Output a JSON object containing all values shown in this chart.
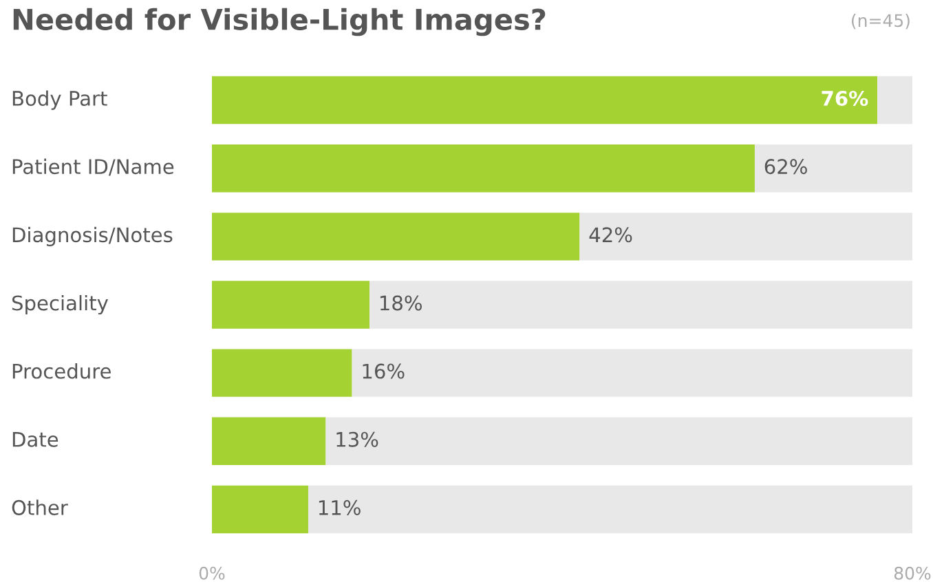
{
  "chart_data": {
    "type": "bar",
    "orientation": "horizontal",
    "stacked": true,
    "title": "Needed for Visible-Light Images?",
    "annotations": [
      "(n=45)"
    ],
    "categories": [
      "Body Part",
      "Patient ID/Name",
      "Diagnosis/Notes",
      "Speciality",
      "Procedure",
      "Date",
      "Other"
    ],
    "series": [
      {
        "color": "#a4d233",
        "values": [
          76,
          62,
          42,
          18,
          16,
          13,
          11
        ],
        "value_labels": [
          "76%",
          "62%",
          "42%",
          "18%",
          "16%",
          "13%",
          "11%"
        ]
      },
      {
        "color": "#e8e8e8",
        "values": [
          4,
          18,
          38,
          62,
          64,
          67,
          69
        ]
      }
    ],
    "xlim": [
      0,
      80
    ],
    "xticks": [
      {
        "value": 0,
        "label": "0%"
      },
      {
        "value": 80,
        "label": "80%"
      }
    ],
    "grid": false,
    "legend": false
  }
}
